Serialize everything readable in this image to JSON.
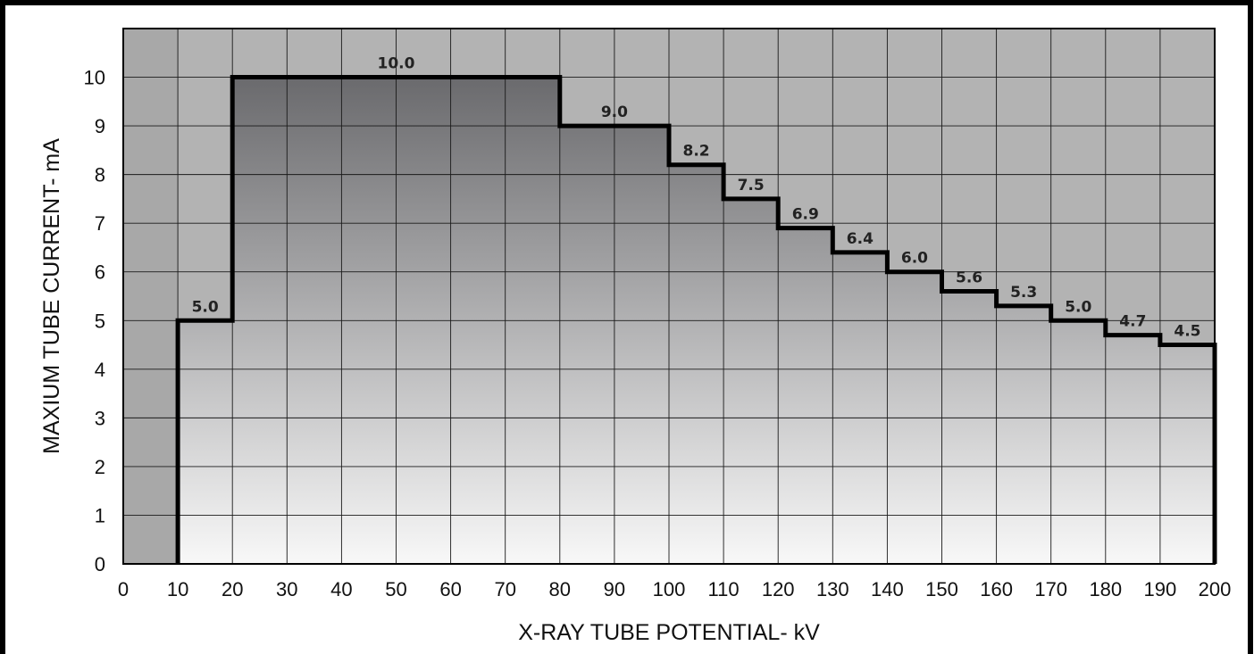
{
  "chart_data": {
    "type": "line",
    "subtype": "step",
    "title": "",
    "xlabel": "X-RAY TUBE POTENTIAL- kV",
    "ylabel": "MAXIUM TUBE CURRENT- mA",
    "xlim": [
      0,
      200
    ],
    "ylim": [
      0,
      11
    ],
    "x_ticks": [
      0,
      10,
      20,
      30,
      40,
      50,
      60,
      70,
      80,
      90,
      100,
      110,
      120,
      130,
      140,
      150,
      160,
      170,
      180,
      190,
      200
    ],
    "y_ticks": [
      0,
      1,
      2,
      3,
      4,
      5,
      6,
      7,
      8,
      9,
      10
    ],
    "grid": true,
    "steps": [
      {
        "x_start": 10,
        "x_end": 20,
        "value": 5.0,
        "label": "5.0"
      },
      {
        "x_start": 20,
        "x_end": 80,
        "value": 10.0,
        "label": "10.0"
      },
      {
        "x_start": 80,
        "x_end": 100,
        "value": 9.0,
        "label": "9.0"
      },
      {
        "x_start": 100,
        "x_end": 110,
        "value": 8.2,
        "label": "8.2"
      },
      {
        "x_start": 110,
        "x_end": 120,
        "value": 7.5,
        "label": "7.5"
      },
      {
        "x_start": 120,
        "x_end": 130,
        "value": 6.9,
        "label": "6.9"
      },
      {
        "x_start": 130,
        "x_end": 140,
        "value": 6.4,
        "label": "6.4"
      },
      {
        "x_start": 140,
        "x_end": 150,
        "value": 6.0,
        "label": "6.0"
      },
      {
        "x_start": 150,
        "x_end": 160,
        "value": 5.6,
        "label": "5.6"
      },
      {
        "x_start": 160,
        "x_end": 170,
        "value": 5.3,
        "label": "5.3"
      },
      {
        "x_start": 170,
        "x_end": 180,
        "value": 5.0,
        "label": "5.0"
      },
      {
        "x_start": 180,
        "x_end": 190,
        "value": 4.7,
        "label": "4.7"
      },
      {
        "x_start": 190,
        "x_end": 200,
        "value": 4.5,
        "label": "4.5"
      }
    ],
    "colors": {
      "frame": "#000000",
      "plot_background": "#b3b3b3",
      "left_region": "#a8a8a8",
      "gradient_top": "#6a6a6d",
      "gradient_bottom": "#f8f8f8",
      "grid": "#1a1a1a",
      "step_line": "#000000"
    }
  }
}
